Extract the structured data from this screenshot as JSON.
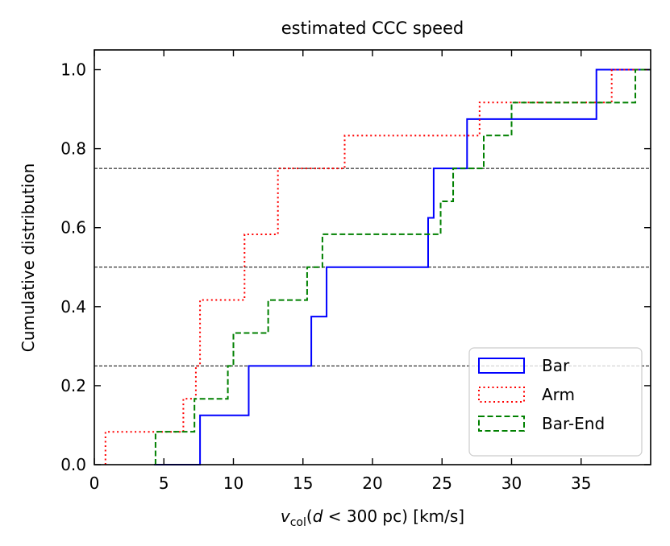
{
  "chart_data": {
    "type": "line",
    "title": "estimated CCC speed",
    "xlabel": {
      "var": "v",
      "sub": "col",
      "open": "(",
      "d": "d",
      "lt": " < ",
      "rest": "300 pc) [km/s]"
    },
    "ylabel": "Cumulative distribution",
    "xlim": [
      0,
      40
    ],
    "ylim": [
      0,
      1.05
    ],
    "xticks": [
      0,
      5,
      10,
      15,
      20,
      25,
      30,
      35
    ],
    "xtick_labels": [
      "0",
      "5",
      "10",
      "15",
      "20",
      "25",
      "30",
      "35"
    ],
    "yticks": [
      0,
      0.2,
      0.4,
      0.6,
      0.8,
      1.0
    ],
    "ytick_labels": [
      "0.0",
      "0.2",
      "0.4",
      "0.6",
      "0.8",
      "1.0"
    ],
    "reference_lines": [
      0.25,
      0.5,
      0.75
    ],
    "legend_position": "lower right",
    "series": [
      {
        "name": "Bar",
        "color": "#0000ff",
        "style": "solid",
        "sorted_values": [
          7.6,
          11.1,
          15.6,
          16.7,
          24.0,
          24.4,
          26.8,
          36.1
        ],
        "y_start": 0,
        "x_start": 4.3,
        "x_end": 40
      },
      {
        "name": "Arm",
        "color": "#ff0000",
        "style": "dotted",
        "sorted_values": [
          0.8,
          6.4,
          7.3,
          7.6,
          10.8,
          13.2,
          18.0,
          27.7,
          37.2
        ],
        "y_steps": [
          0.083,
          0.167,
          0.25,
          0.417,
          0.583,
          0.75,
          0.833,
          0.917,
          1.0
        ],
        "y_start": 0,
        "x_start": 0.8,
        "x_end": 40
      },
      {
        "name": "Bar-End",
        "color": "#008000",
        "style": "dashed",
        "sorted_values": [
          4.4,
          7.2,
          9.6,
          10.0,
          12.5,
          15.3,
          16.4,
          24.9,
          25.8,
          28.0,
          30.0,
          38.9
        ],
        "y_start": 0,
        "x_start": 4.4,
        "x_end": 40
      }
    ]
  }
}
